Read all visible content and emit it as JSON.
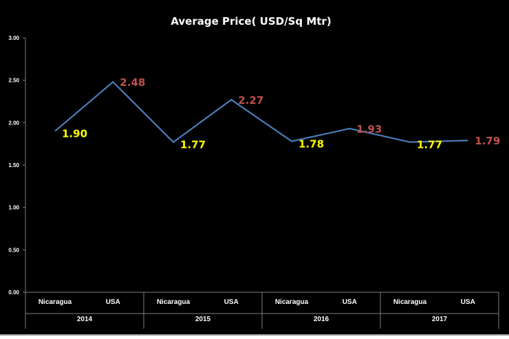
{
  "chart_data": {
    "type": "line",
    "title": "Average Price( USD/Sq Mtr)",
    "xlabel": "",
    "ylabel": "",
    "ylim": [
      0,
      3
    ],
    "yticks": [
      "0.00",
      "0.50",
      "1.00",
      "1.50",
      "2.00",
      "2.50",
      "3.00"
    ],
    "groups": [
      {
        "label": "2014",
        "categories": [
          "Nicaragua",
          "USA"
        ]
      },
      {
        "label": "2015",
        "categories": [
          "Nicaragua",
          "USA"
        ]
      },
      {
        "label": "2016",
        "categories": [
          "Nicaragua",
          "USA"
        ]
      },
      {
        "label": "2017",
        "categories": [
          "Nicaragua",
          "USA"
        ]
      }
    ],
    "series": [
      {
        "values": [
          1.9,
          2.48,
          1.77,
          2.27,
          1.78,
          1.93,
          1.77,
          1.79
        ],
        "data_labels": [
          "1.90",
          "2.48",
          "1.77",
          "2.27",
          "1.78",
          "1.93",
          "1.77",
          "1.79"
        ]
      }
    ],
    "grid": false,
    "legend": "none",
    "colors": {
      "background": "#000000",
      "line": "#4a7ebb",
      "label_nicaragua": "#ffff00",
      "label_usa": "#c0504d",
      "text": "#ffffff",
      "axis": "#7f7f7f"
    }
  }
}
